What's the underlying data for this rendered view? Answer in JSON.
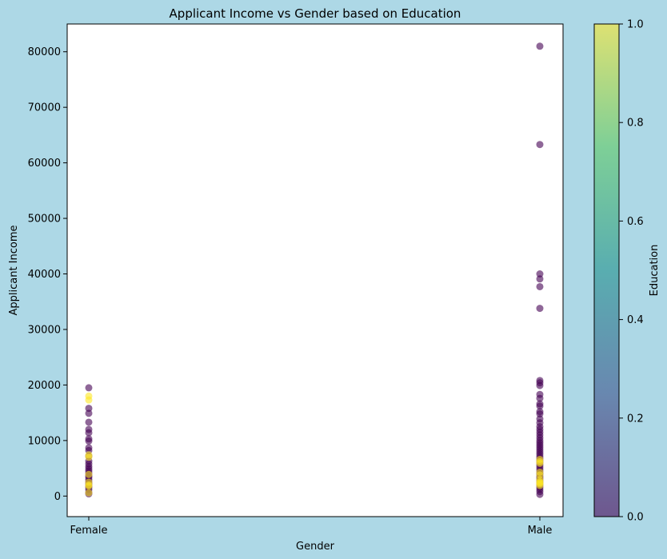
{
  "chart_data": {
    "type": "scatter",
    "title": "Applicant Income vs Gender based on Education",
    "xlabel": "Gender",
    "ylabel": "Applicant Income",
    "categories": [
      "Female",
      "Male"
    ],
    "ylim": [
      -3700,
      85000
    ],
    "yticks": [
      0,
      10000,
      20000,
      30000,
      40000,
      50000,
      60000,
      70000,
      80000
    ],
    "grid": false,
    "marker_alpha": 0.6,
    "colorbar": {
      "label": "Education",
      "range": [
        0.0,
        1.0
      ],
      "ticks": [
        "0.0",
        "0.2",
        "0.4",
        "0.6",
        "0.8",
        "1.0"
      ],
      "colormap": "viridis",
      "colors": [
        "#440154",
        "#3b528b",
        "#21918c",
        "#5ec962",
        "#fde725"
      ]
    },
    "series": [
      {
        "education": 0,
        "points": [
          [
            "Female",
            19500
          ],
          [
            "Female",
            15800
          ],
          [
            "Female",
            14900
          ],
          [
            "Female",
            13300
          ],
          [
            "Female",
            12000
          ],
          [
            "Female",
            11400
          ],
          [
            "Female",
            10300
          ],
          [
            "Female",
            9900
          ],
          [
            "Female",
            8700
          ],
          [
            "Female",
            8200
          ],
          [
            "Female",
            7200
          ],
          [
            "Female",
            6300
          ],
          [
            "Female",
            5800
          ],
          [
            "Female",
            5300
          ],
          [
            "Female",
            4900
          ],
          [
            "Female",
            4500
          ],
          [
            "Female",
            4100
          ],
          [
            "Female",
            3700
          ],
          [
            "Female",
            3400
          ],
          [
            "Female",
            3000
          ],
          [
            "Female",
            2600
          ],
          [
            "Female",
            2300
          ],
          [
            "Female",
            1900
          ],
          [
            "Female",
            1600
          ],
          [
            "Female",
            1200
          ],
          [
            "Female",
            700
          ],
          [
            "Female",
            400
          ],
          [
            "Male",
            81000
          ],
          [
            "Male",
            63300
          ],
          [
            "Male",
            40000
          ],
          [
            "Male",
            39100
          ],
          [
            "Male",
            37700
          ],
          [
            "Male",
            33800
          ],
          [
            "Male",
            20800
          ],
          [
            "Male",
            20400
          ],
          [
            "Male",
            19900
          ],
          [
            "Male",
            18300
          ],
          [
            "Male",
            17600
          ],
          [
            "Male",
            16600
          ],
          [
            "Male",
            16200
          ],
          [
            "Male",
            15200
          ],
          [
            "Male",
            14800
          ],
          [
            "Male",
            13900
          ],
          [
            "Male",
            13200
          ],
          [
            "Male",
            12500
          ],
          [
            "Male",
            12000
          ],
          [
            "Male",
            11500
          ],
          [
            "Male",
            11000
          ],
          [
            "Male",
            10500
          ],
          [
            "Male",
            10000
          ],
          [
            "Male",
            9600
          ],
          [
            "Male",
            9200
          ],
          [
            "Male",
            8800
          ],
          [
            "Male",
            8400
          ],
          [
            "Male",
            8000
          ],
          [
            "Male",
            7600
          ],
          [
            "Male",
            7200
          ],
          [
            "Male",
            6800
          ],
          [
            "Male",
            6400
          ],
          [
            "Male",
            6000
          ],
          [
            "Male",
            5600
          ],
          [
            "Male",
            5200
          ],
          [
            "Male",
            4800
          ],
          [
            "Male",
            4400
          ],
          [
            "Male",
            4000
          ],
          [
            "Male",
            3600
          ],
          [
            "Male",
            3200
          ],
          [
            "Male",
            2800
          ],
          [
            "Male",
            2400
          ],
          [
            "Male",
            2000
          ],
          [
            "Male",
            1600
          ],
          [
            "Male",
            1200
          ],
          [
            "Male",
            800
          ],
          [
            "Male",
            300
          ]
        ]
      },
      {
        "education": 1,
        "points": [
          [
            "Female",
            18000
          ],
          [
            "Female",
            17300
          ],
          [
            "Female",
            7400
          ],
          [
            "Female",
            7000
          ],
          [
            "Female",
            3900
          ],
          [
            "Female",
            2500
          ],
          [
            "Female",
            2000
          ],
          [
            "Female",
            1800
          ],
          [
            "Female",
            600
          ],
          [
            "Male",
            6600
          ],
          [
            "Male",
            6200
          ],
          [
            "Male",
            5900
          ],
          [
            "Male",
            4300
          ],
          [
            "Male",
            3800
          ],
          [
            "Male",
            3000
          ],
          [
            "Male",
            2600
          ],
          [
            "Male",
            2400
          ],
          [
            "Male",
            2200
          ],
          [
            "Male",
            1900
          ]
        ]
      }
    ]
  }
}
